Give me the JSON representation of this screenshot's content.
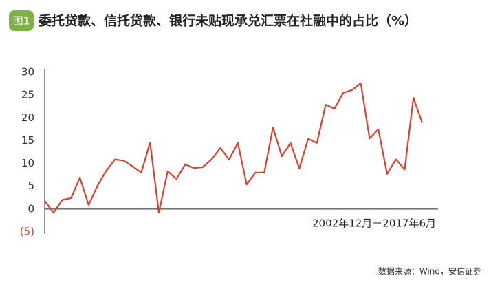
{
  "chart_data": {
    "type": "line",
    "badge": "图1",
    "title": "委托贷款、信托贷款、银行未贴现承兑汇票在社融中的占比（%）",
    "annotation": "2002年12月－2017年6月",
    "source": "数据来源：Wind，安信证券",
    "color": "#d9412f",
    "values": [
      1.8,
      -0.8,
      2.0,
      2.4,
      6.9,
      0.9,
      5.1,
      8.4,
      10.9,
      10.6,
      9.4,
      8.0,
      14.6,
      -0.8,
      8.3,
      6.6,
      9.8,
      9.0,
      9.2,
      10.9,
      13.4,
      10.9,
      14.5,
      5.4,
      8.0,
      8.0,
      17.9,
      11.6,
      14.5,
      8.9,
      15.4,
      14.5,
      22.9,
      22.0,
      25.5,
      26.1,
      27.6,
      15.5,
      17.5,
      7.7,
      10.9,
      8.7,
      24.4,
      18.9
    ],
    "ylim": [
      -5,
      30
    ],
    "yticks": [
      {
        "value": -5,
        "label": "(5)"
      },
      0,
      5,
      10,
      15,
      20,
      25,
      30
    ]
  }
}
